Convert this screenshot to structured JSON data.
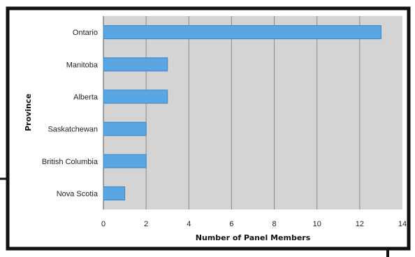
{
  "chart_data": {
    "type": "bar",
    "orientation": "horizontal",
    "title": "",
    "xlabel": "Number of Panel Members",
    "ylabel": "Province",
    "categories": [
      "Ontario",
      "Manitoba",
      "Alberta",
      "Saskatchewan",
      "British Columbia",
      "Nova Scotia"
    ],
    "values": [
      13,
      3,
      3,
      2,
      2,
      1
    ],
    "xlim": [
      0,
      14
    ],
    "xticks": [
      "0",
      "2",
      "4",
      "6",
      "8",
      "10",
      "12",
      "14"
    ],
    "grid": true,
    "legend": "none",
    "colors": {
      "bar": "#5aa6e3",
      "bar_edge": "#3a86c4",
      "plot_background": "#d4d4d4",
      "gridline": "#8a8a8a",
      "frame": "#111111"
    }
  }
}
